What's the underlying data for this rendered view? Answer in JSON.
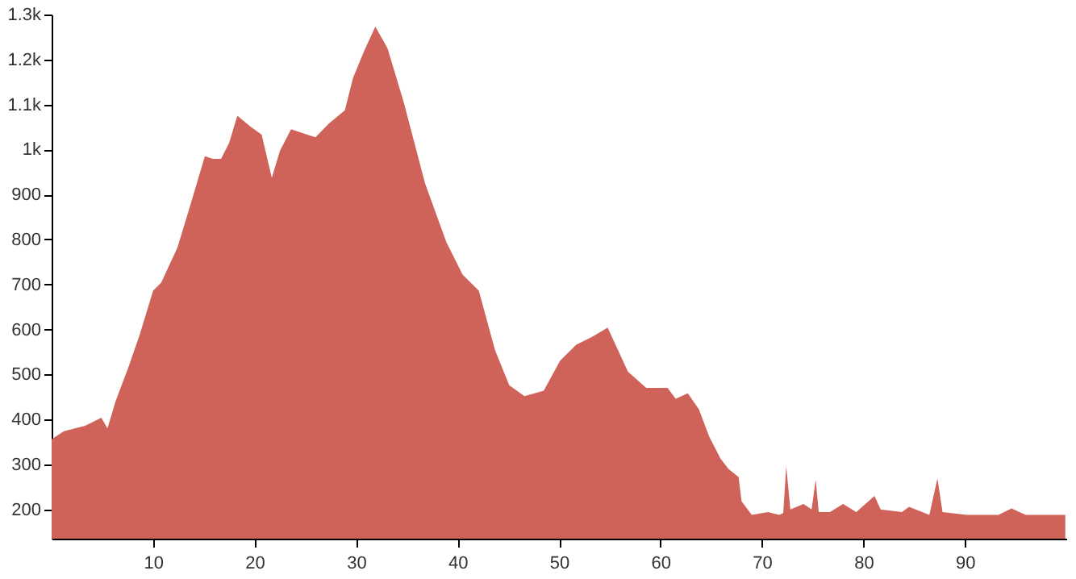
{
  "chart_data": {
    "type": "area",
    "x": [
      0,
      1.2,
      3.3,
      4.9,
      5.5,
      6.3,
      7.6,
      8.7,
      10,
      10.8,
      12.4,
      14,
      15.1,
      15.9,
      16.7,
      17.5,
      18.3,
      19.6,
      20.7,
      21.7,
      22.5,
      23.6,
      25.2,
      26,
      27.3,
      28.9,
      29.7,
      30.8,
      31.9,
      33.1,
      34.7,
      36.8,
      38.9,
      40.5,
      42.1,
      43.7,
      45.1,
      46.6,
      48.5,
      50.1,
      51.7,
      53.3,
      54.8,
      56.8,
      58.6,
      60.7,
      61.5,
      62.7,
      63.8,
      64.8,
      65.9,
      66.7,
      67.7,
      68,
      69,
      70.6,
      71.7,
      72.1,
      72.4,
      72.8,
      74.1,
      74.9,
      75.3,
      75.6,
      76.7,
      78,
      79.3,
      81.1,
      81.7,
      83.8,
      84.5,
      86.5,
      87.3,
      87.8,
      90.2,
      93.3,
      94.6,
      96,
      98.6,
      99.9
    ],
    "series": [
      {
        "color": "#cf6359",
        "values": [
          356,
          374,
          386,
          404,
          380,
          440,
          518,
          590,
          686,
          704,
          782,
          901,
          985,
          979,
          979,
          1015,
          1075,
          1051,
          1033,
          937,
          997,
          1045,
          1033,
          1027,
          1057,
          1087,
          1159,
          1219,
          1273,
          1225,
          1105,
          925,
          794,
          722,
          686,
          554,
          476,
          452,
          464,
          530,
          566,
          584,
          604,
          506,
          470,
          470,
          446,
          458,
          422,
          362,
          314,
          290,
          272,
          218,
          188,
          194,
          188,
          192,
          296,
          200,
          212,
          200,
          266,
          194,
          194,
          212,
          194,
          230,
          200,
          194,
          206,
          188,
          269,
          194,
          188,
          188,
          202,
          188,
          188,
          188
        ]
      }
    ],
    "xlim": [
      0,
      100
    ],
    "xticks": [
      10,
      20,
      30,
      40,
      50,
      60,
      70,
      80,
      90
    ],
    "ylim": [
      135,
      1300
    ],
    "yticks": [
      200,
      300,
      400,
      500,
      600,
      700,
      800,
      900,
      {
        "value": 1000,
        "label": "1k"
      },
      {
        "value": 1100,
        "label": "1.1k"
      },
      {
        "value": 1200,
        "label": "1.2k"
      },
      {
        "value": 1300,
        "label": "1.3k"
      }
    ],
    "grid": false
  }
}
